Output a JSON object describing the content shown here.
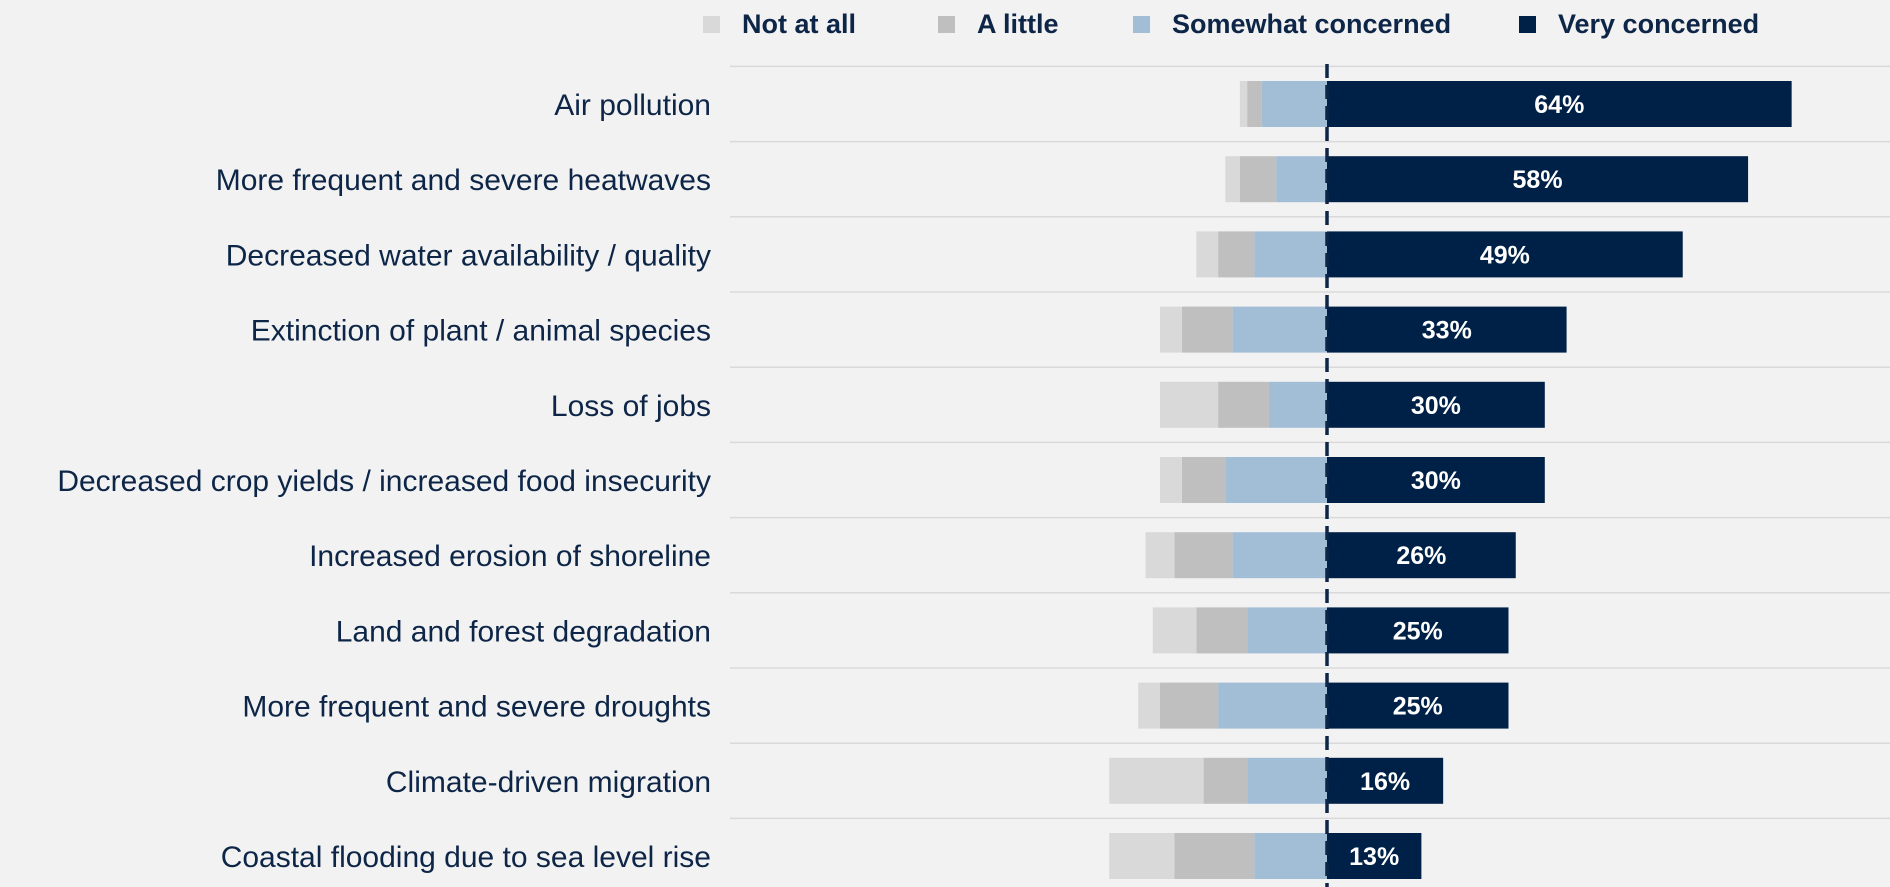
{
  "chart_data": {
    "type": "bar",
    "stacked": true,
    "diverging": true,
    "legend_position": "top",
    "grid": false,
    "categories": [
      "Air pollution",
      "More frequent and severe heatwaves",
      "Decreased water availability / quality",
      "Extinction of plant / animal species",
      "Loss of jobs",
      "Decreased crop yields / increased food insecurity",
      "Increased erosion of shoreline",
      "Land and forest degradation",
      "More frequent and severe droughts",
      "Climate-driven migration",
      "Coastal flooding due to sea level rise"
    ],
    "series": [
      {
        "name": "Not at all",
        "color": "#d9d9d9",
        "side": "left",
        "values": [
          1,
          2,
          3,
          3,
          8,
          3,
          4,
          6,
          3,
          13,
          9
        ]
      },
      {
        "name": "A little",
        "color": "#bfbfbf",
        "side": "left",
        "values": [
          2,
          5,
          5,
          7,
          7,
          6,
          8,
          7,
          8,
          6,
          11
        ]
      },
      {
        "name": "Somewhat concerned",
        "color": "#a2bdd6",
        "side": "left",
        "values": [
          9,
          7,
          10,
          13,
          8,
          14,
          13,
          11,
          15,
          11,
          10
        ]
      },
      {
        "name": "Very concerned",
        "color": "#002147",
        "side": "right",
        "values": [
          64,
          58,
          49,
          33,
          30,
          30,
          26,
          25,
          25,
          16,
          13
        ],
        "labels": [
          "64%",
          "58%",
          "49%",
          "33%",
          "30%",
          "30%",
          "26%",
          "25%",
          "25%",
          "16%",
          "13%"
        ]
      }
    ]
  }
}
